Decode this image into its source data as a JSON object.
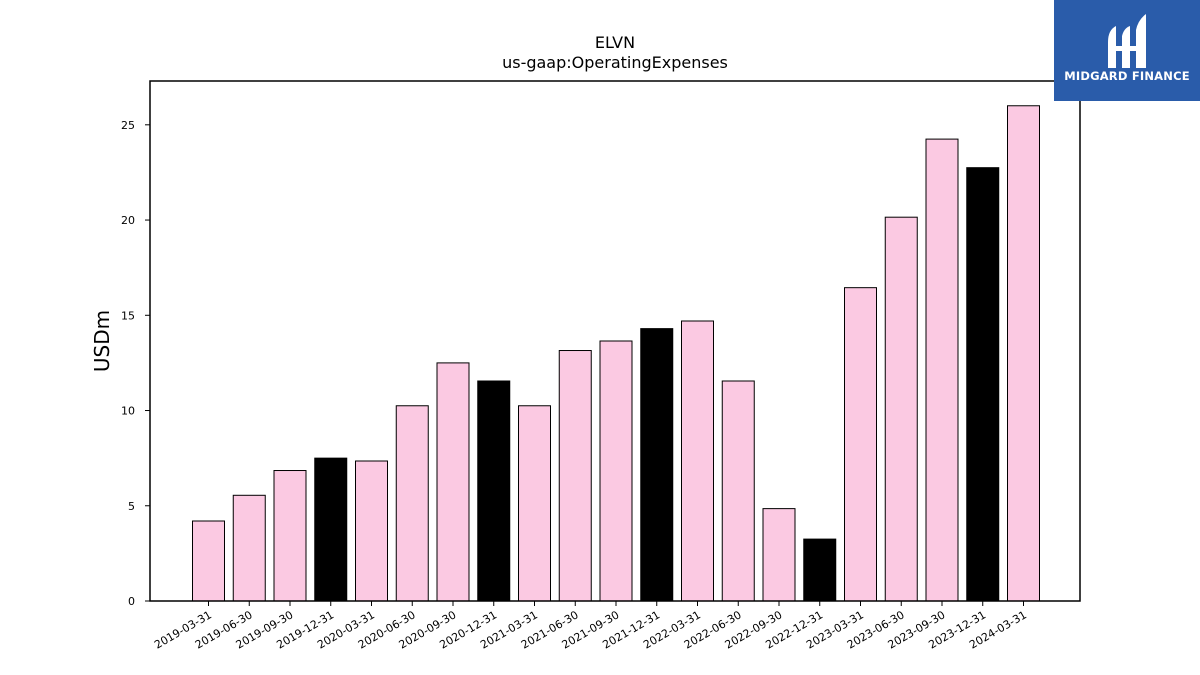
{
  "chart_data": {
    "type": "bar",
    "title": "ELVN",
    "subtitle": "us-gaap:OperatingExpenses",
    "xlabel": "",
    "ylabel": "USDm",
    "ylim": [
      0,
      27.3
    ],
    "yticks": [
      0,
      5,
      10,
      15,
      20,
      25
    ],
    "grid": false,
    "categories": [
      "2019-03-31",
      "2019-06-30",
      "2019-09-30",
      "2019-12-31",
      "2020-03-31",
      "2020-06-30",
      "2020-09-30",
      "2020-12-31",
      "2021-03-31",
      "2021-06-30",
      "2021-09-30",
      "2021-12-31",
      "2022-03-31",
      "2022-06-30",
      "2022-09-30",
      "2022-12-31",
      "2023-03-31",
      "2023-06-30",
      "2023-09-30",
      "2023-12-31",
      "2024-03-31"
    ],
    "values": [
      4.2,
      5.55,
      6.85,
      7.5,
      7.35,
      10.25,
      12.5,
      11.55,
      10.25,
      13.15,
      13.65,
      14.3,
      14.7,
      11.55,
      4.85,
      3.25,
      16.45,
      20.15,
      24.25,
      22.75,
      26.0
    ],
    "colors": {
      "quarter": "#fbc9e2",
      "year_end": "#000000",
      "edge": "#000000"
    },
    "year_end_flags": [
      false,
      false,
      false,
      true,
      false,
      false,
      false,
      true,
      false,
      false,
      false,
      true,
      false,
      false,
      false,
      true,
      false,
      false,
      false,
      true,
      false
    ]
  },
  "logo": {
    "text": "MIDGARD FINANCE",
    "background": "#2a5caa"
  }
}
